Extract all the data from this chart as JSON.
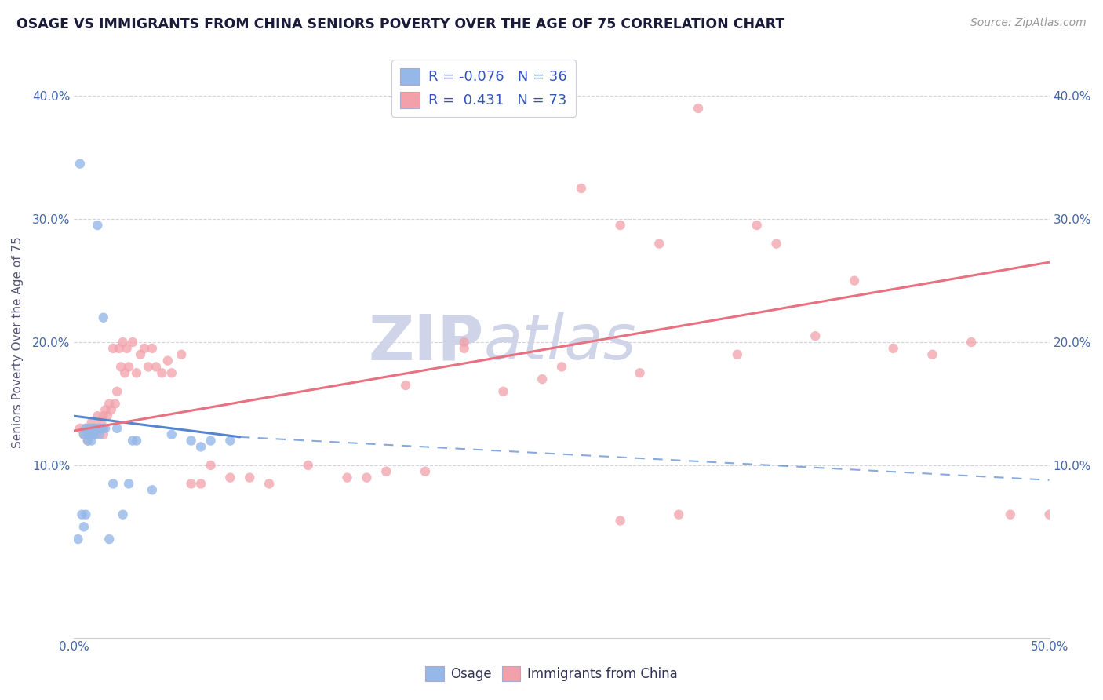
{
  "title": "OSAGE VS IMMIGRANTS FROM CHINA SENIORS POVERTY OVER THE AGE OF 75 CORRELATION CHART",
  "source_text": "Source: ZipAtlas.com",
  "ylabel": "Seniors Poverty Over the Age of 75",
  "xlim": [
    0.0,
    0.5
  ],
  "ylim": [
    -0.04,
    0.44
  ],
  "ytick_positions": [
    0.1,
    0.2,
    0.3,
    0.4
  ],
  "ytick_labels": [
    "10.0%",
    "20.0%",
    "30.0%",
    "40.0%"
  ],
  "xtick_positions": [
    0.0,
    0.05,
    0.1,
    0.15,
    0.2,
    0.25,
    0.3,
    0.35,
    0.4,
    0.45,
    0.5
  ],
  "legend_R1": "-0.076",
  "legend_N1": "36",
  "legend_R2": "0.431",
  "legend_N2": "73",
  "color_osage": "#95b8e8",
  "color_china": "#f2a0aa",
  "color_osage_line": "#5585cc",
  "color_china_line": "#e87080",
  "background_color": "#ffffff",
  "grid_color": "#c8c8dc",
  "watermark_color": "#d0d4e8",
  "osage_x": [
    0.002,
    0.003,
    0.004,
    0.005,
    0.005,
    0.006,
    0.006,
    0.007,
    0.007,
    0.008,
    0.008,
    0.009,
    0.009,
    0.01,
    0.01,
    0.011,
    0.012,
    0.012,
    0.013,
    0.014,
    0.015,
    0.016,
    0.018,
    0.02,
    0.022,
    0.025,
    0.028,
    0.032,
    0.04,
    0.05,
    0.06,
    0.065,
    0.07,
    0.08,
    0.03,
    0.015
  ],
  "osage_y": [
    0.04,
    0.345,
    0.06,
    0.05,
    0.125,
    0.13,
    0.06,
    0.12,
    0.125,
    0.13,
    0.125,
    0.12,
    0.125,
    0.13,
    0.125,
    0.13,
    0.13,
    0.295,
    0.125,
    0.13,
    0.22,
    0.13,
    0.04,
    0.085,
    0.13,
    0.06,
    0.085,
    0.12,
    0.08,
    0.125,
    0.12,
    0.115,
    0.12,
    0.12,
    0.12,
    0.13
  ],
  "china_x": [
    0.003,
    0.005,
    0.006,
    0.007,
    0.008,
    0.008,
    0.009,
    0.01,
    0.01,
    0.011,
    0.012,
    0.013,
    0.014,
    0.015,
    0.015,
    0.016,
    0.017,
    0.018,
    0.019,
    0.02,
    0.021,
    0.022,
    0.023,
    0.024,
    0.025,
    0.026,
    0.027,
    0.028,
    0.03,
    0.032,
    0.034,
    0.036,
    0.038,
    0.04,
    0.042,
    0.045,
    0.048,
    0.05,
    0.055,
    0.06,
    0.065,
    0.07,
    0.08,
    0.09,
    0.1,
    0.12,
    0.14,
    0.16,
    0.18,
    0.2,
    0.22,
    0.24,
    0.26,
    0.28,
    0.3,
    0.32,
    0.34,
    0.36,
    0.38,
    0.4,
    0.42,
    0.44,
    0.46,
    0.48,
    0.5,
    0.25,
    0.29,
    0.31,
    0.2,
    0.35,
    0.15,
    0.17,
    0.28
  ],
  "china_y": [
    0.13,
    0.125,
    0.13,
    0.12,
    0.13,
    0.125,
    0.135,
    0.125,
    0.13,
    0.125,
    0.14,
    0.13,
    0.135,
    0.14,
    0.125,
    0.145,
    0.14,
    0.15,
    0.145,
    0.195,
    0.15,
    0.16,
    0.195,
    0.18,
    0.2,
    0.175,
    0.195,
    0.18,
    0.2,
    0.175,
    0.19,
    0.195,
    0.18,
    0.195,
    0.18,
    0.175,
    0.185,
    0.175,
    0.19,
    0.085,
    0.085,
    0.1,
    0.09,
    0.09,
    0.085,
    0.1,
    0.09,
    0.095,
    0.095,
    0.2,
    0.16,
    0.17,
    0.325,
    0.295,
    0.28,
    0.39,
    0.19,
    0.28,
    0.205,
    0.25,
    0.195,
    0.19,
    0.2,
    0.06,
    0.06,
    0.18,
    0.175,
    0.06,
    0.195,
    0.295,
    0.09,
    0.165,
    0.055
  ],
  "line_osage_x0": 0.0,
  "line_osage_y0": 0.14,
  "line_osage_x1": 0.085,
  "line_osage_y1": 0.123,
  "line_osage_dash_x1": 0.5,
  "line_osage_dash_y1": 0.088,
  "line_china_x0": 0.0,
  "line_china_y0": 0.128,
  "line_china_x1": 0.5,
  "line_china_y1": 0.265
}
